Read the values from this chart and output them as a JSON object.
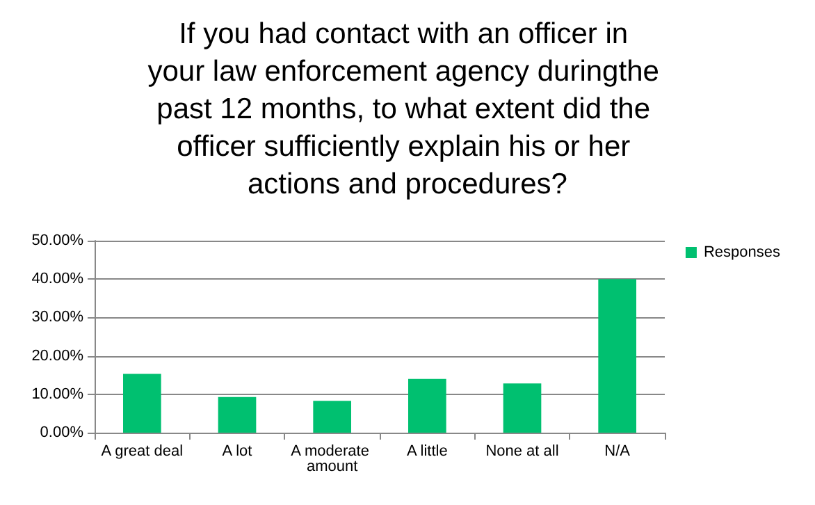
{
  "chart_data": {
    "type": "bar",
    "title": "If you had contact with an officer in your law enforcement agency duringthe past 12 months, to what extent did the officer sufficiently explain his or her actions and procedures?",
    "categories": [
      "A great deal",
      "A lot",
      "A moderate amount",
      "A little",
      "None at all",
      "N/A"
    ],
    "series": [
      {
        "name": "Responses",
        "color": "#00c070",
        "values": [
          15.3,
          9.3,
          8.3,
          14,
          12.8,
          40
        ]
      }
    ],
    "ylim": [
      0,
      50
    ],
    "yticks": [
      {
        "value": 0,
        "label": "0.00%"
      },
      {
        "value": 10,
        "label": "10.00%"
      },
      {
        "value": 20,
        "label": "20.00%"
      },
      {
        "value": 30,
        "label": "30.00%"
      },
      {
        "value": 40,
        "label": "40.00%"
      },
      {
        "value": 50,
        "label": "50.00%"
      }
    ],
    "grid": "y",
    "legend": "right"
  }
}
